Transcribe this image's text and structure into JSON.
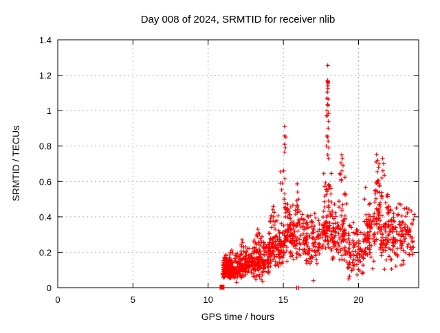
{
  "chart_data": {
    "type": "scatter",
    "title": "Day 008 of 2024, SRMTID for receiver nlib",
    "xlabel": "GPS time / hours",
    "ylabel": "SRMTID / TECUs",
    "xlim": [
      0,
      24
    ],
    "ylim": [
      0,
      1.4
    ],
    "xticks": [
      {
        "v": 0,
        "label": "0"
      },
      {
        "v": 5,
        "label": "5"
      },
      {
        "v": 10,
        "label": "10"
      },
      {
        "v": 15,
        "label": "15"
      },
      {
        "v": 20,
        "label": "20"
      }
    ],
    "yticks": [
      {
        "v": 0,
        "label": "0"
      },
      {
        "v": 0.2,
        "label": "0.2"
      },
      {
        "v": 0.4,
        "label": "0.4"
      },
      {
        "v": 0.6,
        "label": "0.6"
      },
      {
        "v": 0.8,
        "label": "0.8"
      },
      {
        "v": 1,
        "label": "1"
      },
      {
        "v": 1.2,
        "label": "1.2"
      },
      {
        "v": 1.4,
        "label": "1.4"
      }
    ],
    "grid": true,
    "legend": "none",
    "marker": {
      "shape": "plus",
      "color": "#ff0000",
      "size": 7
    },
    "colors": {
      "frame": "#000000",
      "grid": "#b0b0b0",
      "background": "#ffffff"
    },
    "series": [
      {
        "name": "SRMTID",
        "color": "#ff0000",
        "clusters": [
          {
            "x0": 10.95,
            "x1": 11.55,
            "n": 100,
            "yMin": 0.05,
            "yPeak": 0.105,
            "yMax": 0.19,
            "snap": 0
          },
          {
            "x0": 11.05,
            "x1": 12.0,
            "n": 120,
            "yMin": 0.04,
            "yPeak": 0.11,
            "yMax": 0.22,
            "snap": 0
          },
          {
            "x0": 12.0,
            "x1": 13.0,
            "n": 130,
            "yMin": 0.05,
            "yPeak": 0.13,
            "yMax": 0.25,
            "snap": 0
          },
          {
            "x0": 13.0,
            "x1": 14.05,
            "n": 130,
            "yMin": 0.04,
            "yPeak": 0.16,
            "yMax": 0.31,
            "snap": 0
          },
          {
            "x0": 14.0,
            "x1": 15.05,
            "n": 120,
            "yMin": 0.09,
            "yPeak": 0.24,
            "yMax": 0.44,
            "snap": 0
          },
          {
            "x0": 15.0,
            "x1": 16.3,
            "n": 130,
            "yMin": 0.13,
            "yPeak": 0.3,
            "yMax": 0.52,
            "snap": 0
          },
          {
            "x0": 16.3,
            "x1": 17.6,
            "n": 115,
            "yMin": 0.11,
            "yPeak": 0.27,
            "yMax": 0.46,
            "snap": 0
          },
          {
            "x0": 17.62,
            "x1": 18.2,
            "n": 80,
            "yMin": 0.2,
            "yPeak": 0.36,
            "yMax": 0.72,
            "snap": 0.04
          },
          {
            "x0": 18.2,
            "x1": 18.68,
            "n": 45,
            "yMin": 0.15,
            "yPeak": 0.28,
            "yMax": 0.48,
            "snap": 0
          },
          {
            "x0": 18.7,
            "x1": 19.2,
            "n": 55,
            "yMin": 0.1,
            "yPeak": 0.33,
            "yMax": 0.7,
            "snap": 0.05
          },
          {
            "x0": 19.2,
            "x1": 20.35,
            "n": 85,
            "yMin": 0.06,
            "yPeak": 0.21,
            "yMax": 0.4,
            "snap": 0
          },
          {
            "x0": 20.35,
            "x1": 21.05,
            "n": 65,
            "yMin": 0.1,
            "yPeak": 0.29,
            "yMax": 0.5,
            "snap": 0
          },
          {
            "x0": 21.05,
            "x1": 21.45,
            "n": 55,
            "yMin": 0.15,
            "yPeak": 0.43,
            "yMax": 0.72,
            "snap": 0.04
          },
          {
            "x0": 21.45,
            "x1": 22.1,
            "n": 65,
            "yMin": 0.1,
            "yPeak": 0.32,
            "yMax": 0.6,
            "snap": 0
          },
          {
            "x0": 22.1,
            "x1": 23.05,
            "n": 80,
            "yMin": 0.1,
            "yPeak": 0.31,
            "yMax": 0.49,
            "snap": 0
          },
          {
            "x0": 23.05,
            "x1": 23.72,
            "n": 45,
            "yMin": 0.14,
            "yPeak": 0.32,
            "yMax": 0.48,
            "snap": 0.05
          }
        ],
        "points": [
          [
            15.08,
            0.91
          ],
          [
            15.08,
            0.857
          ],
          [
            15.17,
            0.85
          ],
          [
            15.08,
            0.81
          ],
          [
            15.14,
            0.79
          ],
          [
            15.08,
            0.765
          ],
          [
            15.02,
            0.66
          ],
          [
            14.82,
            0.655
          ],
          [
            15.1,
            0.615
          ],
          [
            14.8,
            0.59
          ],
          [
            14.93,
            0.59
          ],
          [
            14.88,
            0.552
          ],
          [
            15.1,
            0.53
          ],
          [
            15.06,
            0.5
          ],
          [
            15.12,
            0.475
          ],
          [
            15.92,
            0.586
          ],
          [
            15.95,
            0.54
          ],
          [
            16.0,
            0.5
          ],
          [
            15.9,
            0.49
          ],
          [
            15.98,
            0.44
          ],
          [
            17.95,
            1.255
          ],
          [
            17.94,
            1.17
          ],
          [
            17.96,
            1.165
          ],
          [
            17.95,
            1.16
          ],
          [
            17.97,
            1.155
          ],
          [
            17.95,
            1.14
          ],
          [
            17.96,
            1.125
          ],
          [
            17.93,
            1.105
          ],
          [
            17.9,
            1.07
          ],
          [
            17.98,
            1.065
          ],
          [
            17.94,
            1.035
          ],
          [
            17.97,
            1.03
          ],
          [
            17.9,
            1.0
          ],
          [
            18.0,
            0.985
          ],
          [
            17.92,
            0.972
          ],
          [
            17.88,
            0.97
          ],
          [
            18.0,
            0.94
          ],
          [
            17.98,
            0.9
          ],
          [
            17.9,
            0.857
          ],
          [
            17.95,
            0.85
          ],
          [
            17.98,
            0.828
          ],
          [
            17.86,
            0.8
          ],
          [
            18.02,
            0.79
          ],
          [
            17.95,
            0.75
          ],
          [
            18.0,
            0.73
          ],
          [
            18.88,
            0.75
          ],
          [
            18.93,
            0.73
          ],
          [
            18.83,
            0.705
          ],
          [
            18.97,
            0.69
          ],
          [
            18.9,
            0.66
          ],
          [
            18.8,
            0.64
          ],
          [
            18.85,
            0.61
          ],
          [
            20.47,
            0.565
          ],
          [
            20.4,
            0.5
          ],
          [
            21.2,
            0.752
          ],
          [
            21.28,
            0.72
          ],
          [
            21.17,
            0.71
          ],
          [
            21.33,
            0.68
          ],
          [
            21.25,
            0.655
          ],
          [
            21.6,
            0.73
          ],
          [
            21.67,
            0.7
          ],
          [
            21.62,
            0.66
          ],
          [
            21.72,
            0.635
          ],
          [
            21.56,
            0.62
          ],
          [
            12.25,
            0.27
          ],
          [
            12.3,
            0.255
          ],
          [
            12.2,
            0.245
          ],
          [
            13.3,
            0.33
          ],
          [
            13.33,
            0.31
          ],
          [
            13.27,
            0.29
          ],
          [
            14.33,
            0.46
          ],
          [
            14.3,
            0.44
          ],
          [
            14.4,
            0.425
          ],
          [
            14.35,
            0.4
          ],
          [
            17.0,
            0.04
          ],
          [
            13.62,
            0.035
          ],
          [
            11.9,
            0.03
          ],
          [
            19.35,
            0.05
          ],
          [
            19.4,
            0.065
          ],
          [
            20.3,
            0.085
          ],
          [
            22.2,
            0.105
          ],
          [
            15.88,
            0.0
          ],
          [
            16.02,
            0.0
          ]
        ],
        "square_marker": {
          "x": 10.9,
          "y": 0.005
        }
      }
    ]
  }
}
